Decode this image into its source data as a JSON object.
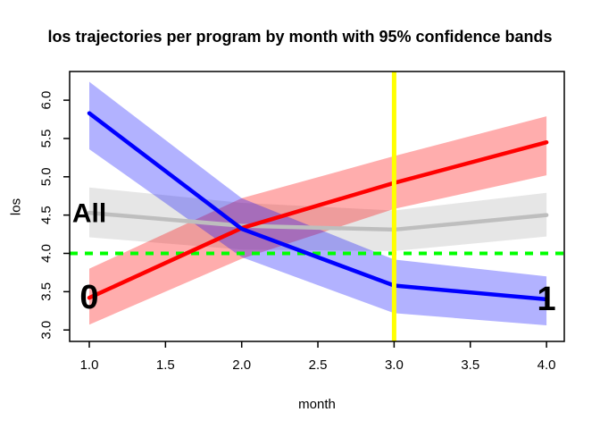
{
  "page": {
    "background": "#FFFFFF"
  },
  "chart_data": {
    "type": "line",
    "title": "los trajectories per program by month with 95% confidence bands",
    "xlabel": "month",
    "ylabel": "los",
    "x": [
      1,
      2,
      3,
      4
    ],
    "xtick_labels": [
      "1.0",
      "1.5",
      "2.0",
      "2.5",
      "3.0",
      "3.5",
      "4.0"
    ],
    "ytick_labels": [
      "3.0",
      "3.5",
      "4.0",
      "4.5",
      "5.0",
      "5.5",
      "6.0"
    ],
    "xlim": [
      0.87,
      4.11
    ],
    "ylim": [
      2.85,
      6.37
    ],
    "grid": false,
    "legend": "none",
    "series": [
      {
        "name": "0",
        "label": "0",
        "color": "#FF0000",
        "band_opacity": 0.32,
        "values": [
          3.42,
          4.33,
          4.92,
          5.45
        ],
        "lower": [
          3.07,
          3.93,
          4.58,
          5.02
        ],
        "upper": [
          3.8,
          4.72,
          5.27,
          5.79
        ],
        "label_at": {
          "x": 1.0,
          "y": 3.42
        }
      },
      {
        "name": "1",
        "label": "1",
        "color": "#0000FF",
        "band_opacity": 0.3,
        "values": [
          5.83,
          4.32,
          3.58,
          3.4
        ],
        "lower": [
          5.36,
          3.95,
          3.22,
          3.06
        ],
        "upper": [
          6.24,
          4.72,
          3.92,
          3.7
        ],
        "label_at": {
          "x": 4.0,
          "y": 3.4
        }
      },
      {
        "name": "All",
        "label": "All",
        "color": "#BEBEBE",
        "band_opacity": 0.38,
        "values": [
          4.53,
          4.36,
          4.31,
          4.5
        ],
        "lower": [
          4.21,
          4.05,
          4.03,
          4.22
        ],
        "upper": [
          4.86,
          4.66,
          4.56,
          4.79
        ],
        "label_at": {
          "x": 1.0,
          "y": 4.52
        }
      }
    ],
    "reference_lines": [
      {
        "orientation": "horizontal",
        "value": 4.0,
        "color": "#00FF00",
        "style": "dashed"
      },
      {
        "orientation": "vertical",
        "value": 3.0,
        "color": "#FFFF00",
        "style": "solid"
      }
    ]
  }
}
